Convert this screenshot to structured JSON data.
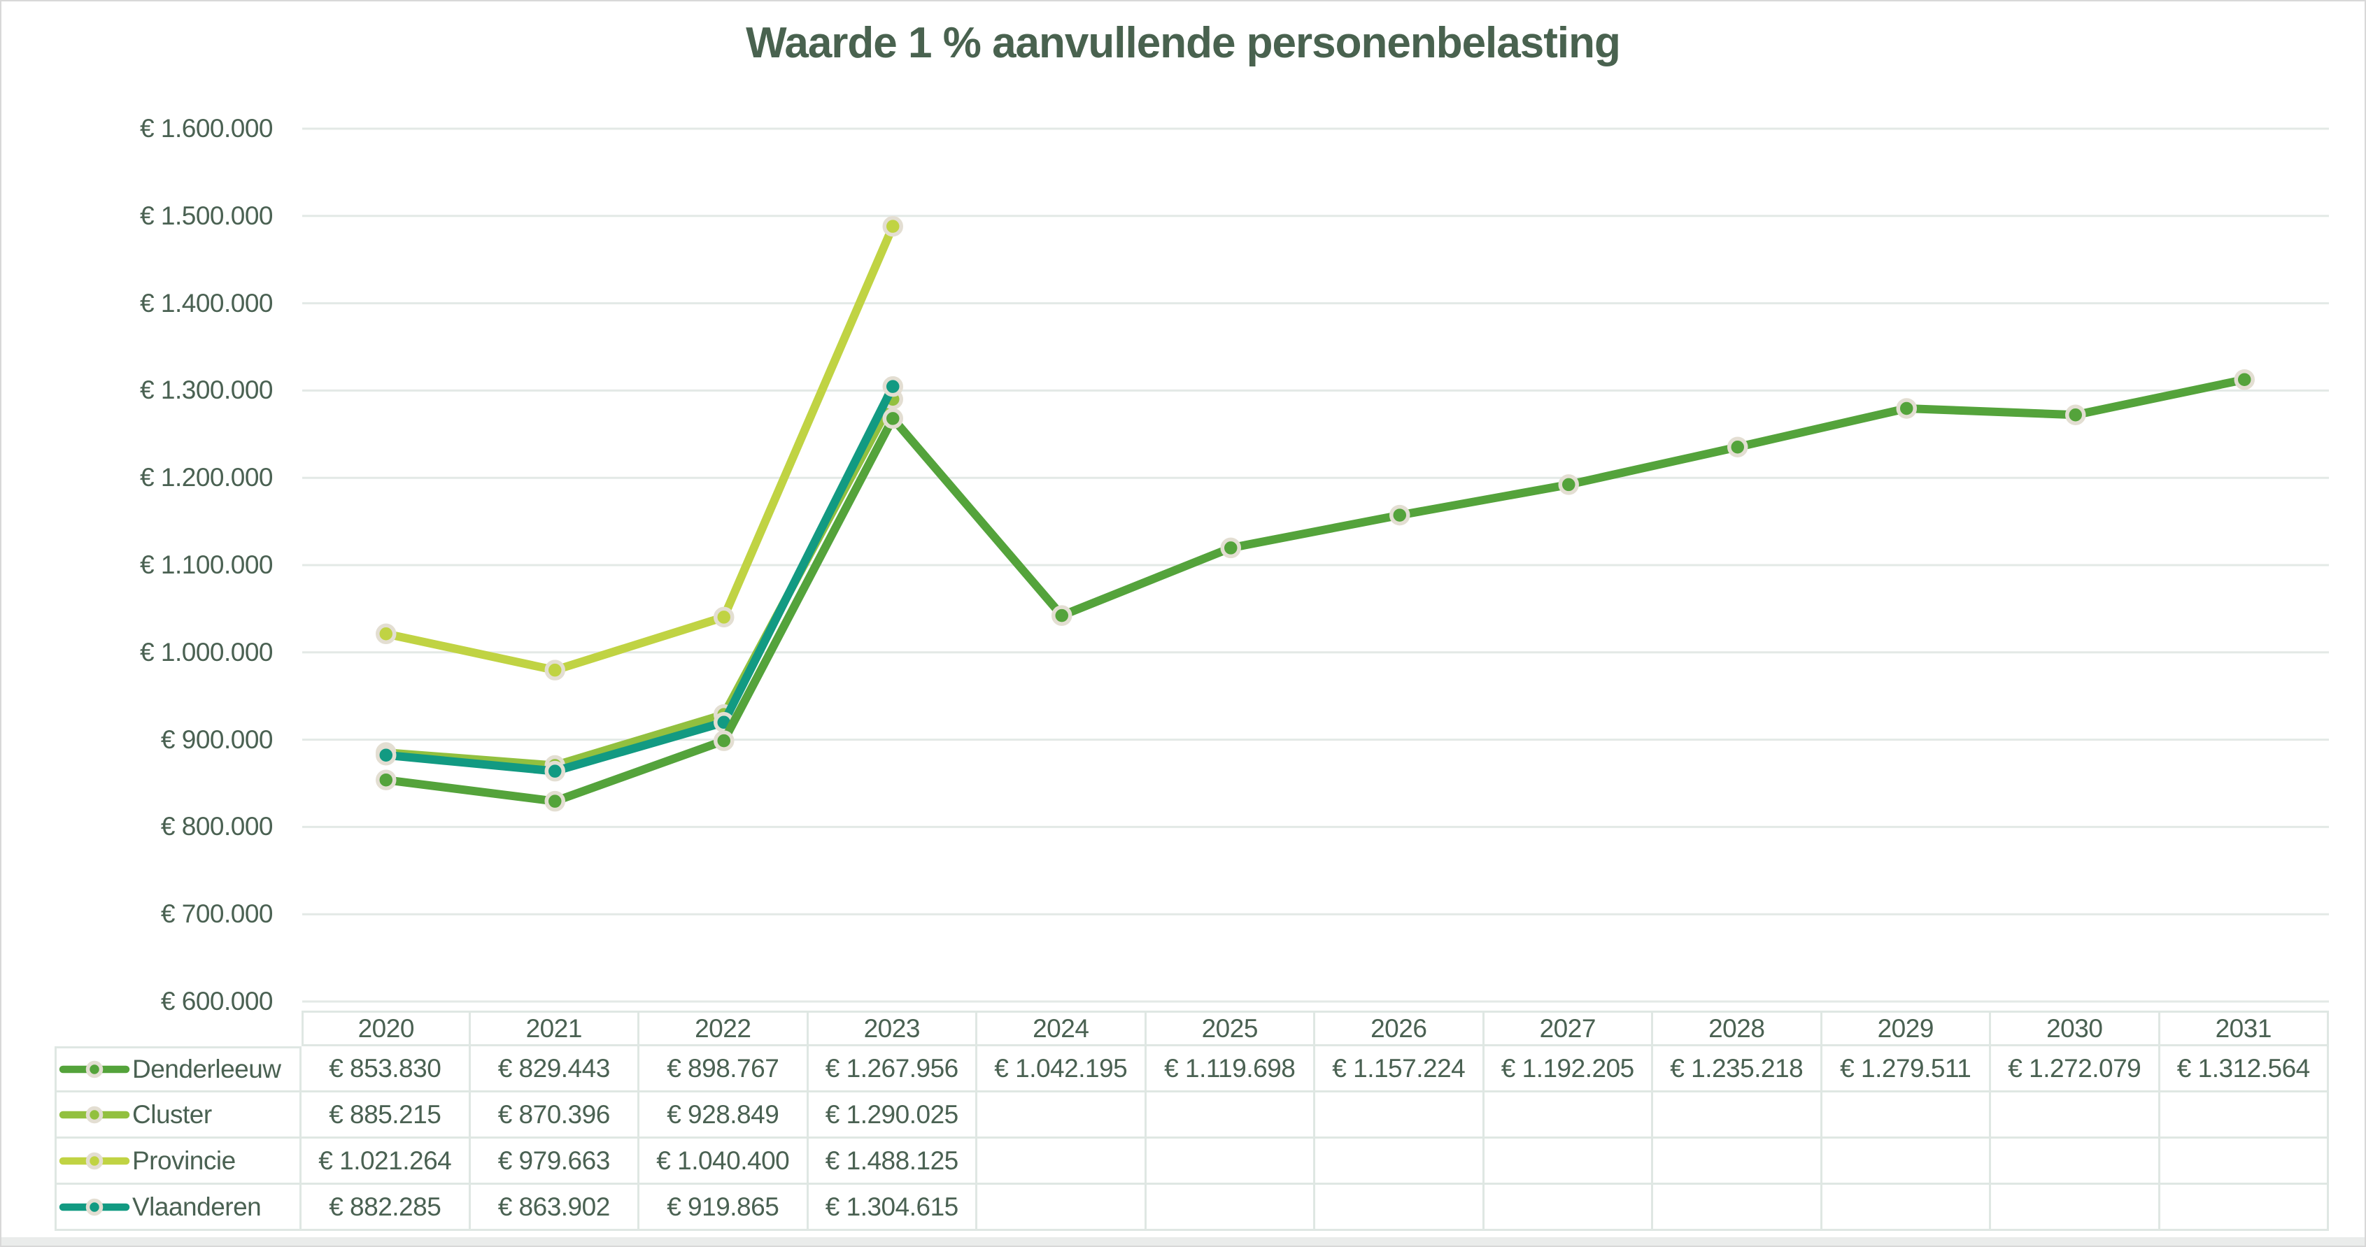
{
  "title": {
    "text": "Waarde 1 % aanvullende personenbelasting"
  },
  "colors": {
    "ink": "#4a6152",
    "title_ink": "#49624f",
    "gridline": "#e3e9e6",
    "table_border": "#dfe7e3",
    "marker_ring": "#e3ded2",
    "bottom_strip": "#eaeceb",
    "canvas_border": "#d8d8d8"
  },
  "chart_data": {
    "type": "line",
    "title": "Waarde 1 % aanvullende personenbelasting",
    "categories": [
      "2020",
      "2021",
      "2022",
      "2023",
      "2024",
      "2025",
      "2026",
      "2027",
      "2028",
      "2029",
      "2030",
      "2031"
    ],
    "series": [
      {
        "name": "Denderleeuw",
        "color": "#54a33b",
        "values": [
          853830,
          829443,
          898767,
          1267956,
          1042195,
          1119698,
          1157224,
          1192205,
          1235218,
          1279511,
          1272079,
          1312564
        ]
      },
      {
        "name": "Cluster",
        "color": "#92c03f",
        "values": [
          885215,
          870396,
          928849,
          1290025
        ]
      },
      {
        "name": "Provincie",
        "color": "#c0d343",
        "values": [
          1021264,
          979663,
          1040400,
          1488125
        ]
      },
      {
        "name": "Vlaanderen",
        "color": "#129a82",
        "values": [
          882285,
          863902,
          919865,
          1304615
        ]
      }
    ],
    "draw_order": [
      "Cluster",
      "Provincie",
      "Vlaanderen",
      "Denderleeuw"
    ],
    "y_axis": {
      "min": 600000,
      "max": 1600000,
      "step": 100000,
      "grid": true
    },
    "value_format": {
      "prefix": "€ ",
      "thousands_separator": "."
    },
    "legend_position": "table-left",
    "x_axis_labels_in_table_header": true
  }
}
